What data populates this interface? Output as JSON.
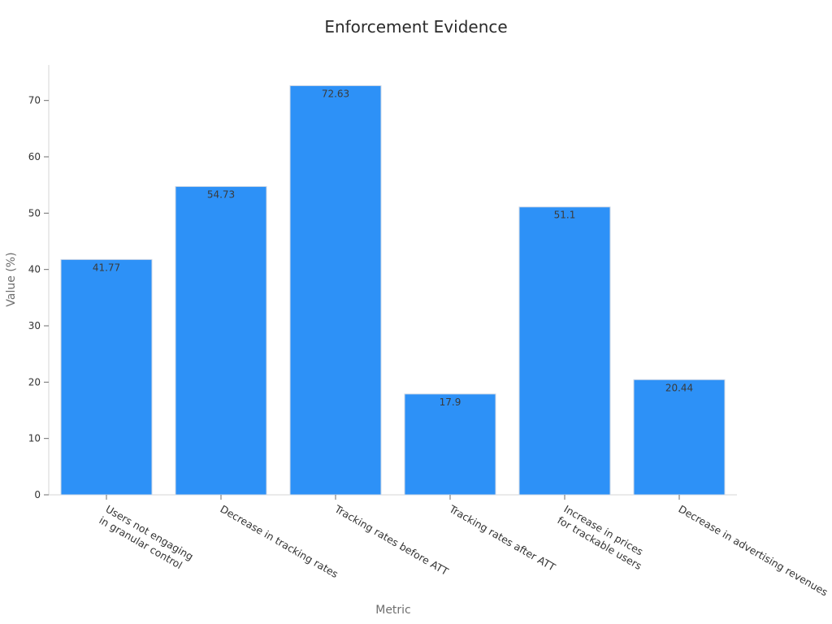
{
  "chart_data": {
    "type": "bar",
    "title": "Enforcement Evidence",
    "xlabel": "Metric",
    "ylabel": "Value (%)",
    "categories": [
      [
        "Users not engaging",
        "in granular control"
      ],
      [
        "Decrease in tracking rates"
      ],
      [
        "Tracking rates before ATT"
      ],
      [
        "Tracking rates after ATT"
      ],
      [
        "Increase in prices",
        "for trackable users"
      ],
      [
        "Decrease in advertising revenues"
      ]
    ],
    "values": [
      41.77,
      54.73,
      72.63,
      17.9,
      51.1,
      20.44
    ],
    "ylim": [
      0,
      76.3
    ],
    "yticks": [
      0,
      10,
      20,
      30,
      40,
      50,
      60,
      70
    ],
    "bar_color": "#2d91f7",
    "grid": false,
    "legend": "none"
  }
}
